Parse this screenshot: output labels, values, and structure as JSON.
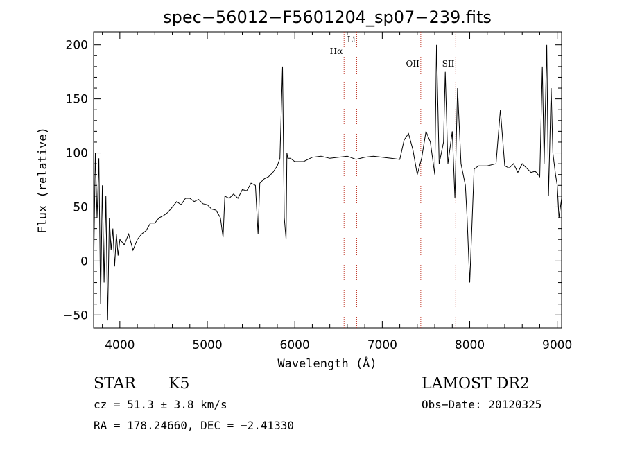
{
  "chart_data": {
    "type": "line",
    "title": "spec−56012−F5601204_sp07−239.fits",
    "xlabel": "Wavelength (Å)",
    "ylabel": "Flux (relative)",
    "xlim": [
      3700,
      9050
    ],
    "ylim": [
      -62,
      212
    ],
    "x_ticks": [
      4000,
      5000,
      6000,
      7000,
      8000,
      9000
    ],
    "y_ticks": [
      -50,
      0,
      50,
      100,
      150,
      200
    ],
    "x_tick_labels": [
      "4000",
      "5000",
      "6000",
      "7000",
      "8000",
      "9000"
    ],
    "y_tick_labels": [
      "−50",
      "0",
      "50",
      "100",
      "150",
      "200"
    ],
    "reference_lines": [
      {
        "label": "Hα",
        "x": 6563
      },
      {
        "label": "Li",
        "x": 6708
      },
      {
        "label": "OII",
        "x": 7440
      },
      {
        "label": "SII",
        "x": 7840
      }
    ],
    "series": [
      {
        "x": [
          3700,
          3720,
          3740,
          3760,
          3780,
          3800,
          3820,
          3840,
          3860,
          3880,
          3900,
          3920,
          3940,
          3960,
          3980,
          4000,
          4050,
          4100,
          4150,
          4200,
          4250,
          4300,
          4350,
          4400,
          4450,
          4500,
          4550,
          4600,
          4650,
          4700,
          4750,
          4800,
          4850,
          4900,
          4950,
          5000,
          5050,
          5100,
          5150,
          5180,
          5200,
          5250,
          5300,
          5350,
          5400,
          5450,
          5500,
          5550,
          5580,
          5600,
          5650,
          5700,
          5750,
          5800,
          5830,
          5860,
          5880,
          5900,
          5910,
          5920,
          5950,
          6000,
          6100,
          6200,
          6300,
          6400,
          6500,
          6600,
          6700,
          6800,
          6900,
          7000,
          7100,
          7200,
          7250,
          7300,
          7350,
          7400,
          7450,
          7500,
          7550,
          7600,
          7620,
          7650,
          7700,
          7720,
          7750,
          7800,
          7830,
          7860,
          7900,
          7950,
          7970,
          8000,
          8050,
          8100,
          8200,
          8300,
          8350,
          8400,
          8450,
          8500,
          8550,
          8600,
          8650,
          8700,
          8750,
          8800,
          8830,
          8850,
          8880,
          8900,
          8930,
          8950,
          8980,
          9000,
          9020,
          9050
        ],
        "y": [
          -10,
          100,
          40,
          95,
          -40,
          70,
          -20,
          60,
          -55,
          40,
          10,
          30,
          -5,
          25,
          5,
          20,
          15,
          25,
          10,
          20,
          25,
          28,
          35,
          35,
          40,
          42,
          45,
          50,
          55,
          52,
          58,
          58,
          55,
          57,
          53,
          52,
          48,
          47,
          40,
          22,
          60,
          58,
          62,
          58,
          66,
          65,
          72,
          70,
          25,
          72,
          76,
          78,
          82,
          88,
          95,
          180,
          40,
          20,
          100,
          95,
          95,
          92,
          92,
          96,
          97,
          95,
          96,
          97,
          94,
          96,
          97,
          96,
          95,
          94,
          112,
          118,
          103,
          80,
          95,
          120,
          110,
          80,
          200,
          90,
          110,
          175,
          90,
          120,
          58,
          160,
          90,
          70,
          40,
          -20,
          85,
          88,
          88,
          90,
          140,
          88,
          86,
          90,
          82,
          90,
          86,
          82,
          83,
          78,
          180,
          90,
          200,
          60,
          160,
          100,
          80,
          70,
          40,
          58
        ]
      }
    ]
  },
  "info": {
    "object_class": "STAR",
    "subclass": "K5",
    "survey": "LAMOST DR2",
    "cz": "cz = 51.3 ± 3.8 km/s",
    "obs_date": "Obs−Date: 20120325",
    "coords": "RA = 178.24660, DEC =  −2.41330"
  }
}
